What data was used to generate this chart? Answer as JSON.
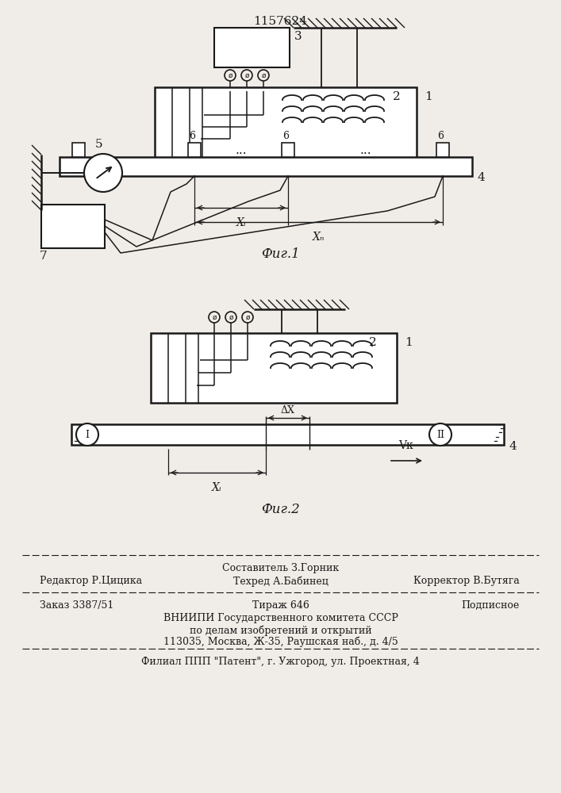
{
  "title": "1157624",
  "fig1_caption": "Фиг.1",
  "fig2_caption": "Фиг.2",
  "footer_sestavitel": "Составитель З.Горник",
  "footer_editor": "Редактор Р.Цицика",
  "footer_tehred": "Техред А.Бабинец",
  "footer_korrektor": "Корректор В.Бутяга",
  "footer_zakaz": "Заказ 3387/51",
  "footer_tirazh": "Тираж 646",
  "footer_podpisnoe": "Подписное",
  "footer_vniipи": "ВНИИПИ Государственного комитета СССР",
  "footer_dela": "по делам изобретений и открытий",
  "footer_addr": "113035, Москва, Ж-35, Раушская наб., д. 4/5",
  "footer_filial": "Филиал ППП \"Патент\", г. Ужгород, ул. Проектная, 4",
  "bg_color": "#f0ede8",
  "line_color": "#1a1a1a"
}
